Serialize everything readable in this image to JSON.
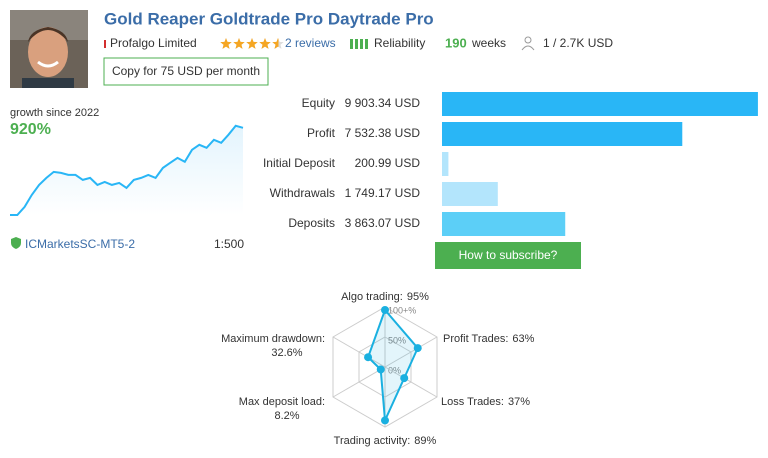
{
  "header": {
    "title": "Gold Reaper Goldtrade Pro Daytrade Pro",
    "author": "Profalgo Limited",
    "rating": 4.5,
    "reviews": "2 reviews",
    "reliability": "Reliability",
    "weeks_value": "190",
    "weeks_label": "weeks",
    "subscribers": "1 / 2.7K USD",
    "copy_button": "Copy for 75 USD per month"
  },
  "account": {
    "broker": "ICMarketsSC-MT5-2",
    "leverage": "1:500"
  },
  "subscribe_button": "How to subscribe?",
  "chart_data": [
    {
      "type": "line",
      "title": "growth since 2022",
      "value_label": "920%",
      "color": "#29b6f6",
      "values": [
        0,
        0,
        83,
        207,
        310,
        382,
        444,
        434,
        413,
        413,
        362,
        382,
        310,
        341,
        310,
        331,
        279,
        362,
        382,
        413,
        382,
        486,
        538,
        589,
        548,
        672,
        724,
        693,
        775,
        744,
        827,
        920,
        899
      ],
      "ylim": [
        0,
        1000
      ]
    },
    {
      "type": "bar",
      "categories": [
        "Equity",
        "Profit",
        "Initial Deposit",
        "Withdrawals",
        "Deposits"
      ],
      "values": [
        9903.34,
        7532.38,
        200.99,
        1749.17,
        3863.07
      ],
      "value_labels": [
        "9 903.34 USD",
        "7 532.38 USD",
        "200.99 USD",
        "1 749.17 USD",
        "3 863.07 USD"
      ],
      "colors": [
        "#29b6f6",
        "#29b6f6",
        "#b3e5fc",
        "#b3e5fc",
        "#5ccff7"
      ],
      "xlim": [
        0,
        10000
      ]
    },
    {
      "type": "radar",
      "categories": [
        "Algo trading:",
        "Profit Trades:",
        "Loss Trades:",
        "Trading activity:",
        "Max deposit load:",
        "Maximum drawdown:"
      ],
      "values": [
        95,
        63,
        37,
        89,
        8.2,
        32.6
      ],
      "value_labels": [
        "95%",
        "63%",
        "37%",
        "89%",
        "8.2%",
        "32.6%"
      ],
      "ylim": [
        0,
        100
      ],
      "yticks": [
        {
          "value": 100,
          "label": "100+%"
        },
        {
          "value": 50,
          "label": "50%"
        },
        {
          "value": 0,
          "label": "0%"
        }
      ],
      "color": "#1ab0e0"
    }
  ]
}
